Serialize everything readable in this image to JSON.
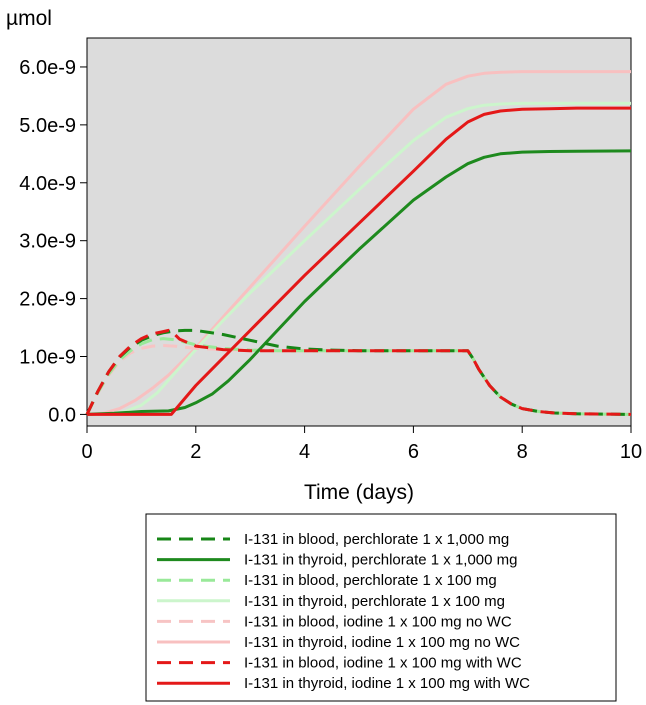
{
  "chart_data": {
    "type": "line",
    "title": "",
    "xlabel": "Time (days)",
    "ylabel": "µmol",
    "xlim": [
      0,
      10
    ],
    "ylim": [
      -2e-10,
      6.5e-09
    ],
    "xticks": [
      0,
      2,
      4,
      6,
      8,
      10
    ],
    "xtick_labels": [
      "0",
      "2",
      "4",
      "6",
      "8",
      "10"
    ],
    "yticks": [
      0,
      1e-09,
      2e-09,
      3e-09,
      4e-09,
      5e-09,
      6e-09
    ],
    "ytick_labels": [
      "0.0",
      "1.0e-9",
      "2.0e-9",
      "3.0e-9",
      "4.0e-9",
      "5.0e-9",
      "6.0e-9"
    ],
    "grid": false,
    "plot_background": "#dcdcdc",
    "legend_position": "below",
    "series": [
      {
        "name": "I-131 in blood, perchlorate 1 x 1,000 mg",
        "color": "#178617",
        "dash": "dashed",
        "x": [
          0,
          0.2,
          0.4,
          0.6,
          0.8,
          1.0,
          1.2,
          1.4,
          1.6,
          1.8,
          2.0,
          2.5,
          3.0,
          3.5,
          4.0,
          4.5,
          5.0,
          5.5,
          6.0,
          6.5,
          7.0,
          7.1,
          7.2,
          7.4,
          7.6,
          7.8,
          8.0,
          8.3,
          8.6,
          9.0,
          9.5,
          10.0
        ],
        "y": [
          0,
          4e-10,
          7.4e-10,
          9.9e-10,
          1.16e-09,
          1.28e-09,
          1.36e-09,
          1.41e-09,
          1.44e-09,
          1.45e-09,
          1.45e-09,
          1.38e-09,
          1.28e-09,
          1.18e-09,
          1.13e-09,
          1.11e-09,
          1.1e-09,
          1.1e-09,
          1.1e-09,
          1.1e-09,
          1.1e-09,
          9.6e-10,
          7.8e-10,
          5e-10,
          3e-10,
          1.8e-10,
          1e-10,
          5e-11,
          2.5e-11,
          1e-11,
          5e-12,
          0
        ]
      },
      {
        "name": "I-131 in thyroid, perchlorate 1 x 1,000 mg",
        "color": "#1e8a1e",
        "dash": "solid",
        "x": [
          0,
          0.5,
          1.0,
          1.5,
          1.8,
          2.0,
          2.3,
          2.6,
          3.0,
          3.5,
          4.0,
          5.0,
          6.0,
          6.6,
          7.0,
          7.3,
          7.6,
          8.0,
          8.5,
          9.0,
          10.0
        ],
        "y": [
          0,
          2e-11,
          5e-11,
          6e-11,
          1.2e-10,
          2e-10,
          3.5e-10,
          5.8e-10,
          9.5e-10,
          1.45e-09,
          1.95e-09,
          2.85e-09,
          3.7e-09,
          4.1e-09,
          4.33e-09,
          4.44e-09,
          4.5e-09,
          4.53e-09,
          4.54e-09,
          4.545e-09,
          4.55e-09
        ]
      },
      {
        "name": "I-131 in blood, perchlorate 1 x 100 mg",
        "color": "#99e999",
        "dash": "dashed",
        "x": [
          0,
          0.2,
          0.4,
          0.6,
          0.8,
          1.0,
          1.2,
          1.4,
          1.6,
          1.8,
          2.0,
          2.5,
          3.0,
          3.5,
          4.0,
          5.0,
          6.0,
          7.0,
          7.1,
          7.2,
          7.4,
          7.6,
          7.8,
          8.0,
          8.3,
          8.6,
          9.0,
          9.5,
          10.0
        ],
        "y": [
          0,
          3.8e-10,
          7e-10,
          9.4e-10,
          1.1e-09,
          1.22e-09,
          1.29e-09,
          1.31e-09,
          1.29e-09,
          1.25e-09,
          1.2e-09,
          1.14e-09,
          1.11e-09,
          1.1e-09,
          1.1e-09,
          1.1e-09,
          1.1e-09,
          1.1e-09,
          9.6e-10,
          7.8e-10,
          5e-10,
          3e-10,
          1.8e-10,
          1e-10,
          5e-11,
          2.5e-11,
          1e-11,
          5e-12,
          0
        ]
      },
      {
        "name": "I-131 in thyroid, perchlorate 1 x 100 mg",
        "color": "#ccf5cc",
        "dash": "solid",
        "x": [
          0,
          0.4,
          0.7,
          1.0,
          1.3,
          1.6,
          2.0,
          2.5,
          3.0,
          4.0,
          5.0,
          6.0,
          6.6,
          7.0,
          7.3,
          7.6,
          8.0,
          8.5,
          9.0,
          10.0
        ],
        "y": [
          0,
          1e-11,
          5e-11,
          1.6e-10,
          3.8e-10,
          7e-10,
          1.12e-09,
          1.62e-09,
          2.1e-09,
          3e-09,
          3.88e-09,
          4.73e-09,
          5.13e-09,
          5.28e-09,
          5.34e-09,
          5.36e-09,
          5.37e-09,
          5.37e-09,
          5.37e-09,
          5.37e-09
        ]
      },
      {
        "name": "I-131 in blood, iodine 1 x 100 mg no WC",
        "color": "#f7c4c4",
        "dash": "dashed",
        "x": [
          0,
          0.2,
          0.4,
          0.6,
          0.8,
          1.0,
          1.2,
          1.4,
          1.6,
          1.8,
          2.0,
          2.5,
          3.0,
          3.5,
          4.0,
          5.0,
          6.0,
          7.0,
          7.1,
          7.2,
          7.4,
          7.6,
          7.8,
          8.0,
          8.3,
          8.6,
          9.0,
          9.5,
          10.0
        ],
        "y": [
          0,
          3.7e-10,
          6.8e-10,
          9.1e-10,
          1.06e-09,
          1.14e-09,
          1.18e-09,
          1.19e-09,
          1.18e-09,
          1.16e-09,
          1.14e-09,
          1.12e-09,
          1.11e-09,
          1.1e-09,
          1.1e-09,
          1.1e-09,
          1.1e-09,
          1.1e-09,
          9.6e-10,
          7.8e-10,
          5e-10,
          3e-10,
          1.8e-10,
          1e-10,
          5e-11,
          2.5e-11,
          1e-11,
          5e-12,
          0
        ]
      },
      {
        "name": "I-131 in thyroid, iodine 1 x 100 mg no WC",
        "color": "#f8c0c0",
        "dash": "solid",
        "x": [
          0,
          0.3,
          0.6,
          0.9,
          1.2,
          1.5,
          2.0,
          2.5,
          3.0,
          4.0,
          5.0,
          6.0,
          6.6,
          7.0,
          7.3,
          7.6,
          8.0,
          8.5,
          9.0,
          10.0
        ],
        "y": [
          0,
          2e-11,
          1e-10,
          2.5e-10,
          4.5e-10,
          6.8e-10,
          1.15e-09,
          1.68e-09,
          2.2e-09,
          3.25e-09,
          4.28e-09,
          5.27e-09,
          5.7e-09,
          5.84e-09,
          5.89e-09,
          5.91e-09,
          5.92e-09,
          5.92e-09,
          5.92e-09,
          5.92e-09
        ]
      },
      {
        "name": "I-131 in blood, iodine 1 x 100 mg with WC",
        "color": "#e41818",
        "dash": "dashed",
        "x": [
          0,
          0.2,
          0.4,
          0.6,
          0.8,
          1.0,
          1.2,
          1.4,
          1.5,
          1.55,
          1.7,
          2.0,
          2.5,
          3.0,
          3.5,
          4.0,
          5.0,
          6.0,
          7.0,
          7.1,
          7.2,
          7.4,
          7.6,
          7.8,
          8.0,
          8.3,
          8.6,
          9.0,
          9.5,
          10.0
        ],
        "y": [
          0,
          4e-10,
          7.4e-10,
          1e-09,
          1.18e-09,
          1.31e-09,
          1.39e-09,
          1.43e-09,
          1.45e-09,
          1.44e-09,
          1.3e-09,
          1.18e-09,
          1.12e-09,
          1.1e-09,
          1.1e-09,
          1.1e-09,
          1.1e-09,
          1.1e-09,
          1.1e-09,
          9.6e-10,
          7.8e-10,
          5e-10,
          3e-10,
          1.8e-10,
          1e-10,
          5e-11,
          2.5e-11,
          1e-11,
          5e-12,
          0
        ]
      },
      {
        "name": "I-131 in thyroid, iodine 1 x 100 mg with WC",
        "color": "#e41818",
        "dash": "solid",
        "x": [
          0,
          1.0,
          1.55,
          2.0,
          3.0,
          4.0,
          5.0,
          6.0,
          6.6,
          7.0,
          7.3,
          7.6,
          8.0,
          8.5,
          9.0,
          10.0
        ],
        "y": [
          0,
          0,
          0,
          5e-10,
          1.45e-09,
          2.4e-09,
          3.3e-09,
          4.2e-09,
          4.75e-09,
          5.05e-09,
          5.18e-09,
          5.24e-09,
          5.27e-09,
          5.28e-09,
          5.29e-09,
          5.29e-09
        ]
      }
    ]
  }
}
